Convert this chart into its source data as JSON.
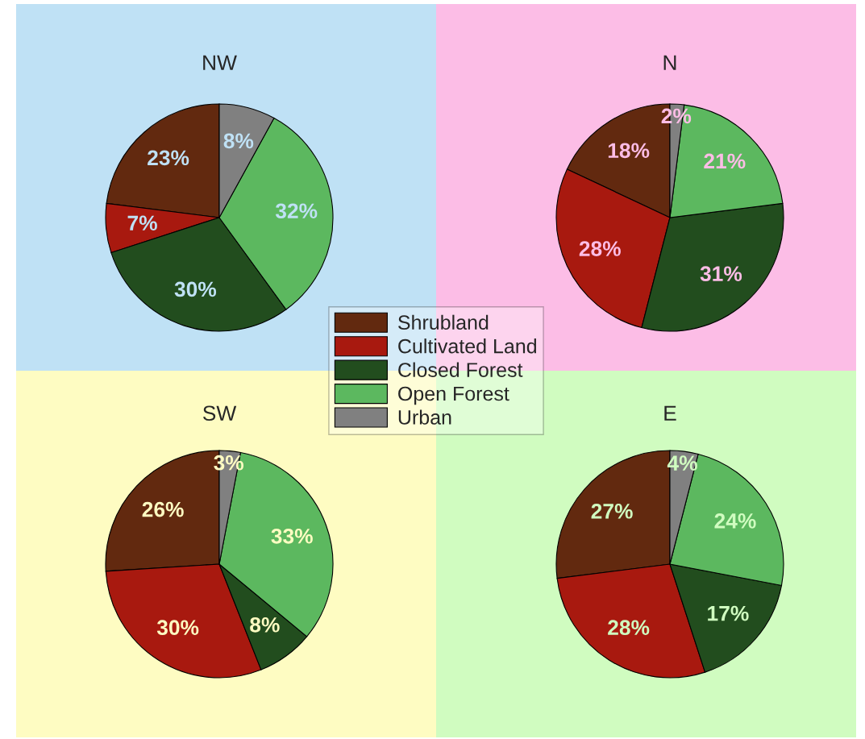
{
  "chart_data": [
    {
      "type": "pie",
      "title": "NW",
      "categories": [
        "Shrubland",
        "Cultivated Land",
        "Closed Forest",
        "Open Forest",
        "Urban"
      ],
      "values": [
        23,
        7,
        30,
        32,
        8
      ],
      "value_labels": [
        "23%",
        "7%",
        "30%",
        "32%",
        "8%"
      ],
      "colors": [
        "#62290f",
        "#a8190f",
        "#224d1e",
        "#5cb85f",
        "#808080"
      ],
      "legend": "bottom right"
    },
    {
      "type": "pie",
      "title": "N",
      "values": [
        18,
        28,
        31,
        21,
        2
      ],
      "value_labels": [
        "18%",
        "28%",
        "31%",
        "21%",
        "2%"
      ],
      "colors": [
        "#62290f",
        "#a8190f",
        "#224d1e",
        "#5cb85f",
        "#808080"
      ]
    },
    {
      "type": "pie",
      "title": "SW",
      "values": [
        26,
        30,
        8,
        33,
        3
      ],
      "value_labels": [
        "26%",
        "30%",
        "8%",
        "33%",
        "3%"
      ],
      "colors": [
        "#62290f",
        "#a8190f",
        "#224d1e",
        "#5cb85f",
        "#808080"
      ]
    },
    {
      "type": "pie",
      "title": "E",
      "values": [
        27,
        28,
        17,
        24,
        4
      ],
      "value_labels": [
        "27%",
        "28%",
        "17%",
        "24%",
        "4%"
      ],
      "colors": [
        "#62290f",
        "#a8190f",
        "#224d1e",
        "#5cb85f",
        "#808080"
      ]
    }
  ]
}
